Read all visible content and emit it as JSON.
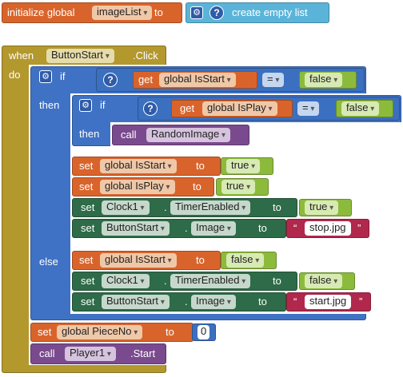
{
  "colors": {
    "event": "#b3982e",
    "control": "#3f72c4",
    "variable": "#d9642b",
    "component_setter": "#2e6b48",
    "logic": "#8cbb3c",
    "procedure": "#7a4a8e",
    "text": "#b1284c",
    "list": "#5ab4d9",
    "math": "#3b6fbf"
  },
  "init_block": {
    "initialize_label": "initialize global",
    "var_name": "imageList",
    "to_label": "to",
    "create_label": "create empty list"
  },
  "event_block": {
    "when_label": "when",
    "component": "ButtonStart",
    "event": ".Click",
    "do_label": "do",
    "if_label": "if",
    "then_label": "then",
    "else_label": "else",
    "condition1": {
      "get_label": "get",
      "var": "global IsStart",
      "op": "=",
      "value": "false"
    },
    "inner_if": {
      "if_label": "if",
      "then_label": "then",
      "condition": {
        "get_label": "get",
        "var": "global IsPlay",
        "op": "=",
        "value": "false"
      },
      "call_label": "call",
      "procedure": "RandomImage"
    },
    "then_statements": [
      {
        "set_label": "set",
        "target": "global IsStart",
        "to_label": "to",
        "value": "true"
      },
      {
        "set_label": "set",
        "target": "global IsPlay",
        "to_label": "to",
        "value": "true"
      },
      {
        "set_label": "set",
        "component": "Clock1",
        "dot": ".",
        "property": "TimerEnabled",
        "to_label": "to",
        "value": "true"
      },
      {
        "set_label": "set",
        "component": "ButtonStart",
        "dot": ".",
        "property": "Image",
        "to_label": "to",
        "quote_open": "“",
        "value": "stop.jpg",
        "quote_close": "”"
      }
    ],
    "else_statements": [
      {
        "set_label": "set",
        "target": "global IsStart",
        "to_label": "to",
        "value": "false"
      },
      {
        "set_label": "set",
        "component": "Clock1",
        "dot": ".",
        "property": "TimerEnabled",
        "to_label": "to",
        "value": "false"
      },
      {
        "set_label": "set",
        "component": "ButtonStart",
        "dot": ".",
        "property": "Image",
        "to_label": "to",
        "quote_open": "“",
        "value": "start.jpg",
        "quote_close": "”"
      }
    ],
    "after_if": [
      {
        "set_label": "set",
        "target": "global PieceNo",
        "to_label": "to",
        "value": "0"
      },
      {
        "call_label": "call",
        "component": "Player1",
        "method": ".Start"
      }
    ]
  }
}
